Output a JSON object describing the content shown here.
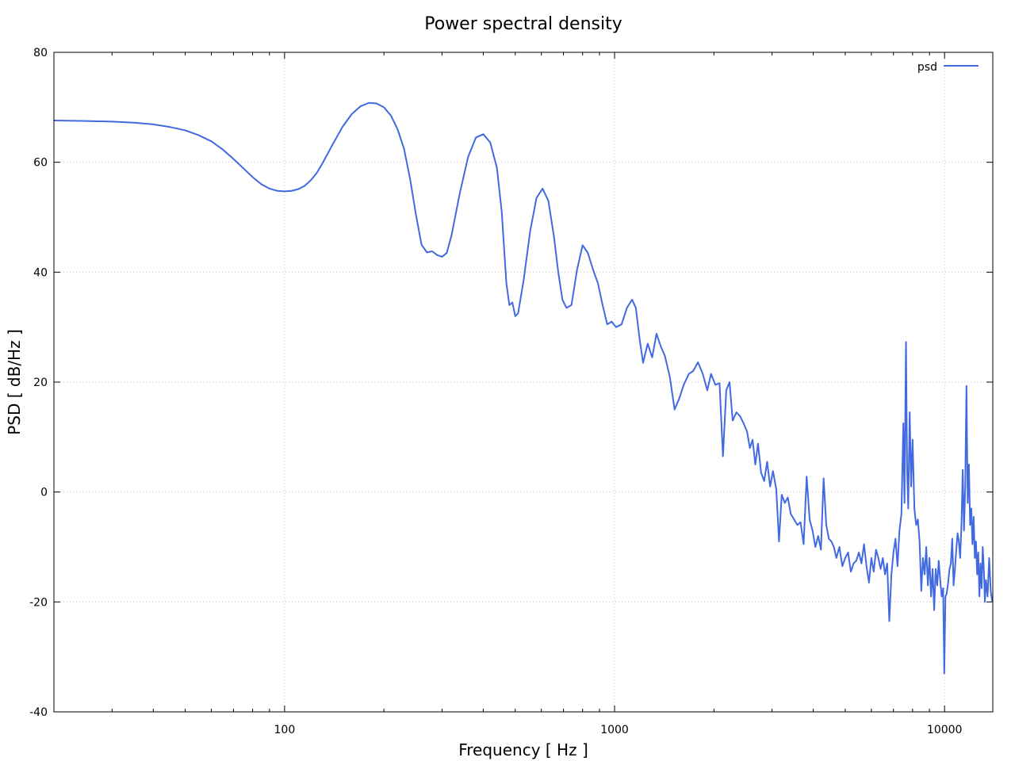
{
  "chart_data": {
    "type": "line",
    "title": "Power spectral density",
    "xlabel": "Frequency [ Hz ]",
    "ylabel": "PSD [ dB/Hz ]",
    "xscale": "log",
    "xlim": [
      20,
      14000
    ],
    "ylim": [
      -40,
      80
    ],
    "grid": true,
    "legend_position": "top-right",
    "x_ticks": [
      {
        "value": 100,
        "label": "100"
      },
      {
        "value": 1000,
        "label": "1000"
      },
      {
        "value": 10000,
        "label": "10000"
      }
    ],
    "y_ticks": [
      {
        "value": 80,
        "label": "80"
      },
      {
        "value": 60,
        "label": "60"
      },
      {
        "value": 40,
        "label": "40"
      },
      {
        "value": 20,
        "label": "20"
      },
      {
        "value": 0,
        "label": "0"
      },
      {
        "value": -20,
        "label": "-20"
      },
      {
        "value": -40,
        "label": "-40"
      }
    ],
    "series": [
      {
        "name": "psd",
        "color": "#4169e1",
        "points": [
          [
            20,
            67.6
          ],
          [
            25,
            67.5
          ],
          [
            30,
            67.4
          ],
          [
            35,
            67.2
          ],
          [
            40,
            66.9
          ],
          [
            45,
            66.4
          ],
          [
            50,
            65.8
          ],
          [
            55,
            64.9
          ],
          [
            60,
            63.8
          ],
          [
            65,
            62.3
          ],
          [
            70,
            60.6
          ],
          [
            75,
            58.9
          ],
          [
            80,
            57.3
          ],
          [
            85,
            56.0
          ],
          [
            90,
            55.2
          ],
          [
            95,
            54.8
          ],
          [
            100,
            54.7
          ],
          [
            105,
            54.8
          ],
          [
            110,
            55.1
          ],
          [
            115,
            55.7
          ],
          [
            120,
            56.7
          ],
          [
            125,
            58.0
          ],
          [
            130,
            59.7
          ],
          [
            140,
            63.3
          ],
          [
            150,
            66.5
          ],
          [
            160,
            68.8
          ],
          [
            170,
            70.2
          ],
          [
            180,
            70.8
          ],
          [
            190,
            70.7
          ],
          [
            200,
            70.0
          ],
          [
            210,
            68.5
          ],
          [
            220,
            66.0
          ],
          [
            230,
            62.5
          ],
          [
            240,
            57.0
          ],
          [
            250,
            50.5
          ],
          [
            260,
            45.0
          ],
          [
            270,
            43.6
          ],
          [
            280,
            43.8
          ],
          [
            290,
            43.1
          ],
          [
            300,
            42.8
          ],
          [
            310,
            43.5
          ],
          [
            320,
            46.5
          ],
          [
            340,
            54.5
          ],
          [
            360,
            61.0
          ],
          [
            380,
            64.5
          ],
          [
            400,
            65.1
          ],
          [
            420,
            63.6
          ],
          [
            440,
            59.0
          ],
          [
            455,
            51.0
          ],
          [
            470,
            38.0
          ],
          [
            480,
            34.0
          ],
          [
            490,
            34.5
          ],
          [
            500,
            32.0
          ],
          [
            510,
            32.5
          ],
          [
            530,
            38.5
          ],
          [
            555,
            47.5
          ],
          [
            580,
            53.5
          ],
          [
            605,
            55.2
          ],
          [
            630,
            53.0
          ],
          [
            655,
            46.5
          ],
          [
            675,
            40.0
          ],
          [
            695,
            35.0
          ],
          [
            715,
            33.5
          ],
          [
            740,
            34.0
          ],
          [
            770,
            40.5
          ],
          [
            800,
            44.9
          ],
          [
            830,
            43.5
          ],
          [
            860,
            40.5
          ],
          [
            890,
            38.0
          ],
          [
            920,
            34.0
          ],
          [
            950,
            30.5
          ],
          [
            980,
            31.0
          ],
          [
            1010,
            30.0
          ],
          [
            1050,
            30.5
          ],
          [
            1090,
            33.5
          ],
          [
            1130,
            35.0
          ],
          [
            1160,
            33.5
          ],
          [
            1190,
            28.0
          ],
          [
            1220,
            23.5
          ],
          [
            1260,
            27.0
          ],
          [
            1300,
            24.5
          ],
          [
            1340,
            28.8
          ],
          [
            1380,
            26.5
          ],
          [
            1420,
            24.8
          ],
          [
            1470,
            21.0
          ],
          [
            1520,
            15.0
          ],
          [
            1570,
            17.0
          ],
          [
            1620,
            19.5
          ],
          [
            1680,
            21.5
          ],
          [
            1730,
            22.0
          ],
          [
            1790,
            23.6
          ],
          [
            1850,
            21.5
          ],
          [
            1910,
            18.5
          ],
          [
            1960,
            21.5
          ],
          [
            2020,
            19.5
          ],
          [
            2080,
            19.8
          ],
          [
            2130,
            6.5
          ],
          [
            2180,
            18.5
          ],
          [
            2230,
            20.0
          ],
          [
            2280,
            13.0
          ],
          [
            2340,
            14.5
          ],
          [
            2400,
            13.8
          ],
          [
            2460,
            12.5
          ],
          [
            2520,
            11.0
          ],
          [
            2570,
            8.0
          ],
          [
            2620,
            9.5
          ],
          [
            2670,
            5.0
          ],
          [
            2720,
            8.8
          ],
          [
            2780,
            3.5
          ],
          [
            2840,
            2.0
          ],
          [
            2900,
            5.5
          ],
          [
            2960,
            1.0
          ],
          [
            3020,
            3.8
          ],
          [
            3090,
            0.5
          ],
          [
            3150,
            -9.0
          ],
          [
            3210,
            -0.5
          ],
          [
            3280,
            -2.0
          ],
          [
            3350,
            -1.0
          ],
          [
            3420,
            -4.0
          ],
          [
            3500,
            -5.0
          ],
          [
            3580,
            -6.0
          ],
          [
            3660,
            -5.5
          ],
          [
            3740,
            -9.5
          ],
          [
            3820,
            2.8
          ],
          [
            3900,
            -5.0
          ],
          [
            3980,
            -7.0
          ],
          [
            4060,
            -10.0
          ],
          [
            4140,
            -8.0
          ],
          [
            4220,
            -10.5
          ],
          [
            4300,
            2.5
          ],
          [
            4380,
            -6.0
          ],
          [
            4460,
            -8.5
          ],
          [
            4540,
            -9.0
          ],
          [
            4620,
            -10.0
          ],
          [
            4700,
            -12.0
          ],
          [
            4800,
            -10.0
          ],
          [
            4900,
            -13.5
          ],
          [
            5000,
            -12.0
          ],
          [
            5100,
            -11.0
          ],
          [
            5200,
            -14.5
          ],
          [
            5300,
            -13.0
          ],
          [
            5400,
            -12.5
          ],
          [
            5500,
            -11.0
          ],
          [
            5600,
            -13.0
          ],
          [
            5700,
            -9.5
          ],
          [
            5800,
            -13.5
          ],
          [
            5900,
            -16.5
          ],
          [
            6000,
            -12.0
          ],
          [
            6100,
            -14.5
          ],
          [
            6200,
            -10.5
          ],
          [
            6300,
            -12.0
          ],
          [
            6400,
            -14.0
          ],
          [
            6500,
            -12.0
          ],
          [
            6600,
            -15.0
          ],
          [
            6700,
            -13.0
          ],
          [
            6800,
            -23.5
          ],
          [
            6900,
            -15.0
          ],
          [
            7000,
            -11.0
          ],
          [
            7100,
            -8.5
          ],
          [
            7200,
            -13.5
          ],
          [
            7300,
            -7.0
          ],
          [
            7400,
            -4.0
          ],
          [
            7500,
            12.5
          ],
          [
            7560,
            -2.0
          ],
          [
            7640,
            27.3
          ],
          [
            7700,
            4.0
          ],
          [
            7760,
            -3.0
          ],
          [
            7840,
            14.5
          ],
          [
            7920,
            1.0
          ],
          [
            8000,
            9.5
          ],
          [
            8100,
            -3.0
          ],
          [
            8200,
            -6.0
          ],
          [
            8300,
            -5.0
          ],
          [
            8400,
            -9.0
          ],
          [
            8500,
            -18.0
          ],
          [
            8600,
            -12.0
          ],
          [
            8700,
            -15.0
          ],
          [
            8800,
            -10.0
          ],
          [
            8900,
            -17.0
          ],
          [
            9000,
            -12.0
          ],
          [
            9100,
            -19.0
          ],
          [
            9200,
            -14.0
          ],
          [
            9300,
            -21.5
          ],
          [
            9400,
            -14.0
          ],
          [
            9500,
            -17.0
          ],
          [
            9600,
            -12.5
          ],
          [
            9700,
            -16.0
          ],
          [
            9800,
            -19.0
          ],
          [
            9900,
            -17.5
          ],
          [
            9980,
            -33.0
          ],
          [
            10060,
            -19.0
          ],
          [
            10150,
            -18.5
          ],
          [
            10250,
            -16.5
          ],
          [
            10350,
            -14.0
          ],
          [
            10450,
            -13.0
          ],
          [
            10550,
            -8.5
          ],
          [
            10650,
            -17.0
          ],
          [
            10750,
            -14.0
          ],
          [
            10850,
            -10.5
          ],
          [
            10950,
            -7.5
          ],
          [
            11050,
            -9.0
          ],
          [
            11150,
            -12.0
          ],
          [
            11250,
            -6.0
          ],
          [
            11350,
            4.0
          ],
          [
            11450,
            -7.0
          ],
          [
            11550,
            1.0
          ],
          [
            11650,
            19.3
          ],
          [
            11750,
            -2.0
          ],
          [
            11850,
            5.0
          ],
          [
            11950,
            -6.0
          ],
          [
            12050,
            -3.0
          ],
          [
            12150,
            -9.5
          ],
          [
            12250,
            -4.5
          ],
          [
            12350,
            -12.0
          ],
          [
            12450,
            -9.0
          ],
          [
            12550,
            -15.0
          ],
          [
            12650,
            -11.0
          ],
          [
            12750,
            -19.0
          ],
          [
            12850,
            -13.0
          ],
          [
            12950,
            -17.5
          ],
          [
            13050,
            -10.0
          ],
          [
            13150,
            -14.0
          ],
          [
            13250,
            -20.0
          ],
          [
            13350,
            -16.0
          ],
          [
            13500,
            -19.0
          ],
          [
            13650,
            -12.0
          ],
          [
            13800,
            -18.0
          ],
          [
            13950,
            -20.0
          ]
        ]
      }
    ]
  }
}
